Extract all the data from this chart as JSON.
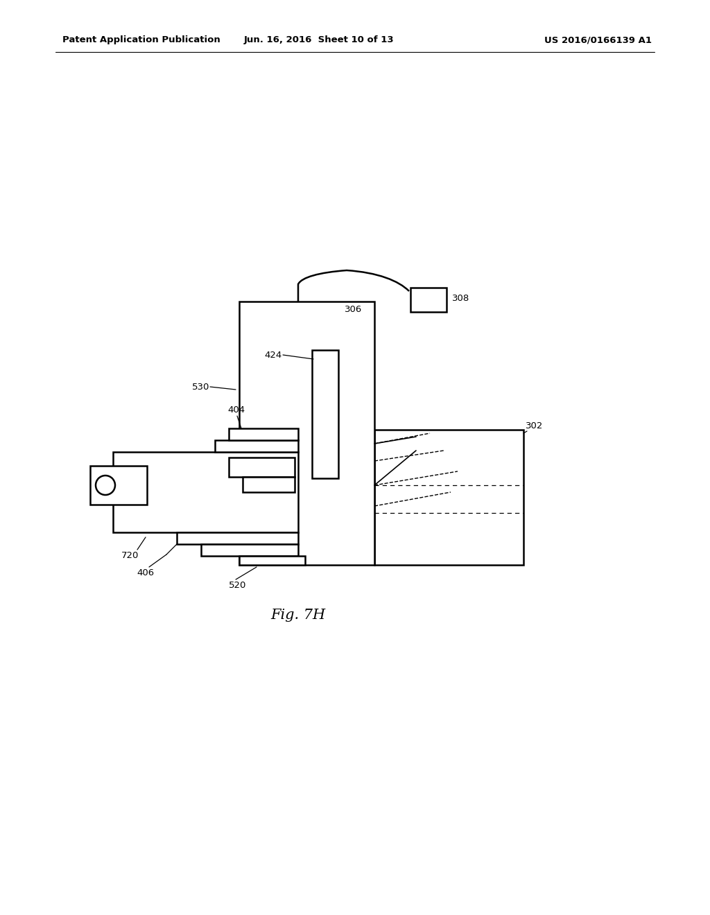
{
  "bg_color": "#ffffff",
  "line_color": "#000000",
  "header_left": "Patent Application Publication",
  "header_mid": "Jun. 16, 2016  Sheet 10 of 13",
  "header_right": "US 2016/0166139 A1",
  "fig_label": "Fig. 7H"
}
